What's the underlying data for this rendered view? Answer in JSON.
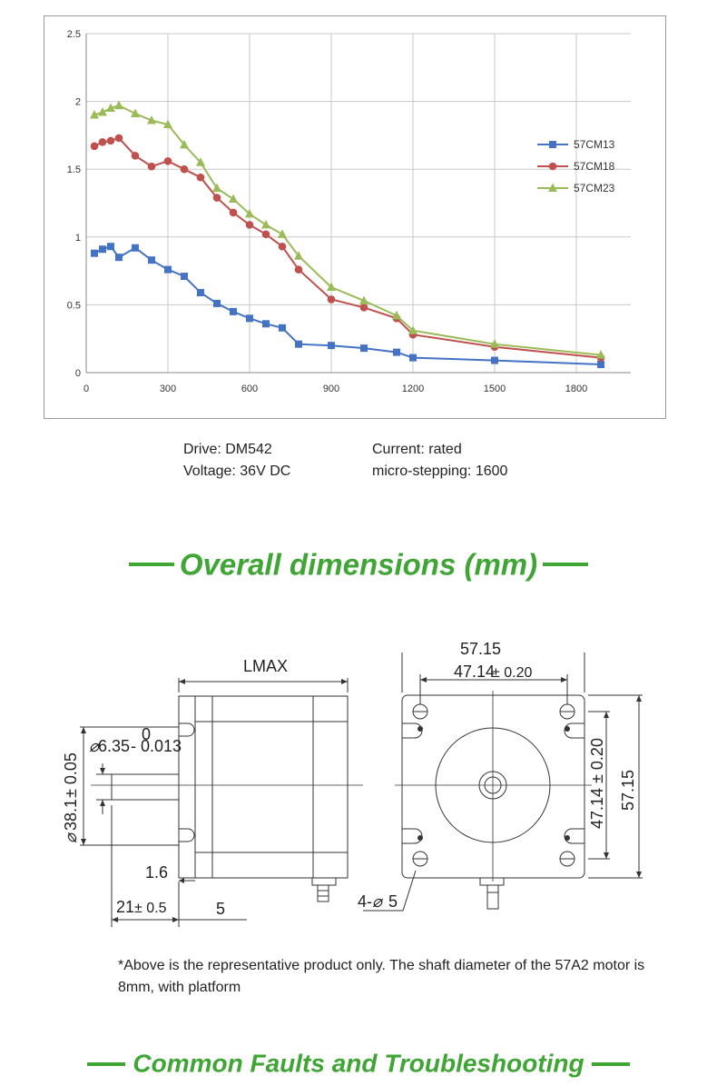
{
  "chart_data": {
    "type": "line",
    "title": "",
    "xlabel": "",
    "ylabel": "",
    "xlim": [
      0,
      2000
    ],
    "ylim": [
      0,
      2.5
    ],
    "x_ticks": [
      0,
      300,
      600,
      900,
      1200,
      1500,
      1800
    ],
    "y_ticks": [
      0,
      0.5,
      1,
      1.5,
      2,
      2.5
    ],
    "y_tick_labels": [
      "0",
      "0.5",
      "1",
      "1.5",
      "2",
      "2.5"
    ],
    "grid": true,
    "legend_position": "right",
    "series": [
      {
        "name": "57CM13",
        "color": "#4472c4",
        "marker": "square",
        "points": [
          [
            30,
            0.88
          ],
          [
            60,
            0.91
          ],
          [
            90,
            0.93
          ],
          [
            120,
            0.85
          ],
          [
            180,
            0.92
          ],
          [
            240,
            0.83
          ],
          [
            300,
            0.76
          ],
          [
            360,
            0.71
          ],
          [
            420,
            0.59
          ],
          [
            480,
            0.51
          ],
          [
            540,
            0.45
          ],
          [
            600,
            0.4
          ],
          [
            660,
            0.36
          ],
          [
            720,
            0.33
          ],
          [
            780,
            0.21
          ],
          [
            900,
            0.2
          ],
          [
            1020,
            0.18
          ],
          [
            1140,
            0.15
          ],
          [
            1200,
            0.11
          ],
          [
            1500,
            0.09
          ],
          [
            1890,
            0.06
          ]
        ]
      },
      {
        "name": "57CM18",
        "color": "#c0504d",
        "marker": "circle",
        "points": [
          [
            30,
            1.67
          ],
          [
            60,
            1.7
          ],
          [
            90,
            1.71
          ],
          [
            120,
            1.73
          ],
          [
            180,
            1.6
          ],
          [
            240,
            1.52
          ],
          [
            300,
            1.56
          ],
          [
            360,
            1.5
          ],
          [
            420,
            1.44
          ],
          [
            480,
            1.29
          ],
          [
            540,
            1.18
          ],
          [
            600,
            1.09
          ],
          [
            660,
            1.02
          ],
          [
            720,
            0.93
          ],
          [
            780,
            0.76
          ],
          [
            900,
            0.54
          ],
          [
            1020,
            0.48
          ],
          [
            1140,
            0.4
          ],
          [
            1200,
            0.28
          ],
          [
            1500,
            0.19
          ],
          [
            1890,
            0.11
          ]
        ]
      },
      {
        "name": "57CM23",
        "color": "#9bbb59",
        "marker": "triangle",
        "points": [
          [
            30,
            1.9
          ],
          [
            60,
            1.92
          ],
          [
            90,
            1.95
          ],
          [
            120,
            1.97
          ],
          [
            180,
            1.91
          ],
          [
            240,
            1.86
          ],
          [
            300,
            1.83
          ],
          [
            360,
            1.68
          ],
          [
            420,
            1.55
          ],
          [
            480,
            1.36
          ],
          [
            540,
            1.28
          ],
          [
            600,
            1.17
          ],
          [
            660,
            1.09
          ],
          [
            720,
            1.02
          ],
          [
            780,
            0.86
          ],
          [
            900,
            0.63
          ],
          [
            1020,
            0.53
          ],
          [
            1140,
            0.42
          ],
          [
            1200,
            0.31
          ],
          [
            1500,
            0.21
          ],
          [
            1890,
            0.13
          ]
        ]
      }
    ]
  },
  "info": {
    "drive": "Drive: DM542",
    "voltage": "Voltage: 36V DC",
    "current": "Current: rated",
    "microstepping": "micro-stepping: 1600"
  },
  "heading_dimensions": "Overall dimensions (mm)",
  "drawing_labels": {
    "lmax": "LMAX",
    "tol_zero": "0",
    "shaft_dia": "6.35",
    "shaft_tol": "- 0.013",
    "pilot_dia": "38.1",
    "pilot_tol": "± 0.05",
    "flange_thick": "1.6",
    "shaft_len": "21",
    "shaft_len_tol": "± 0.5",
    "five": "5",
    "width_overall": "57.15",
    "hole_spacing": "47.14",
    "hole_tol": "± 0.20",
    "hole_spacing_v": "47.14 ± 0.20",
    "height_overall": "57.15",
    "holes": "4-",
    "hole_dia": "5"
  },
  "note": "*Above is the representative product only. The shaft diameter of the 57A2 motor is 8mm, with platform",
  "heading_faults": "Common Faults and Troubleshooting"
}
